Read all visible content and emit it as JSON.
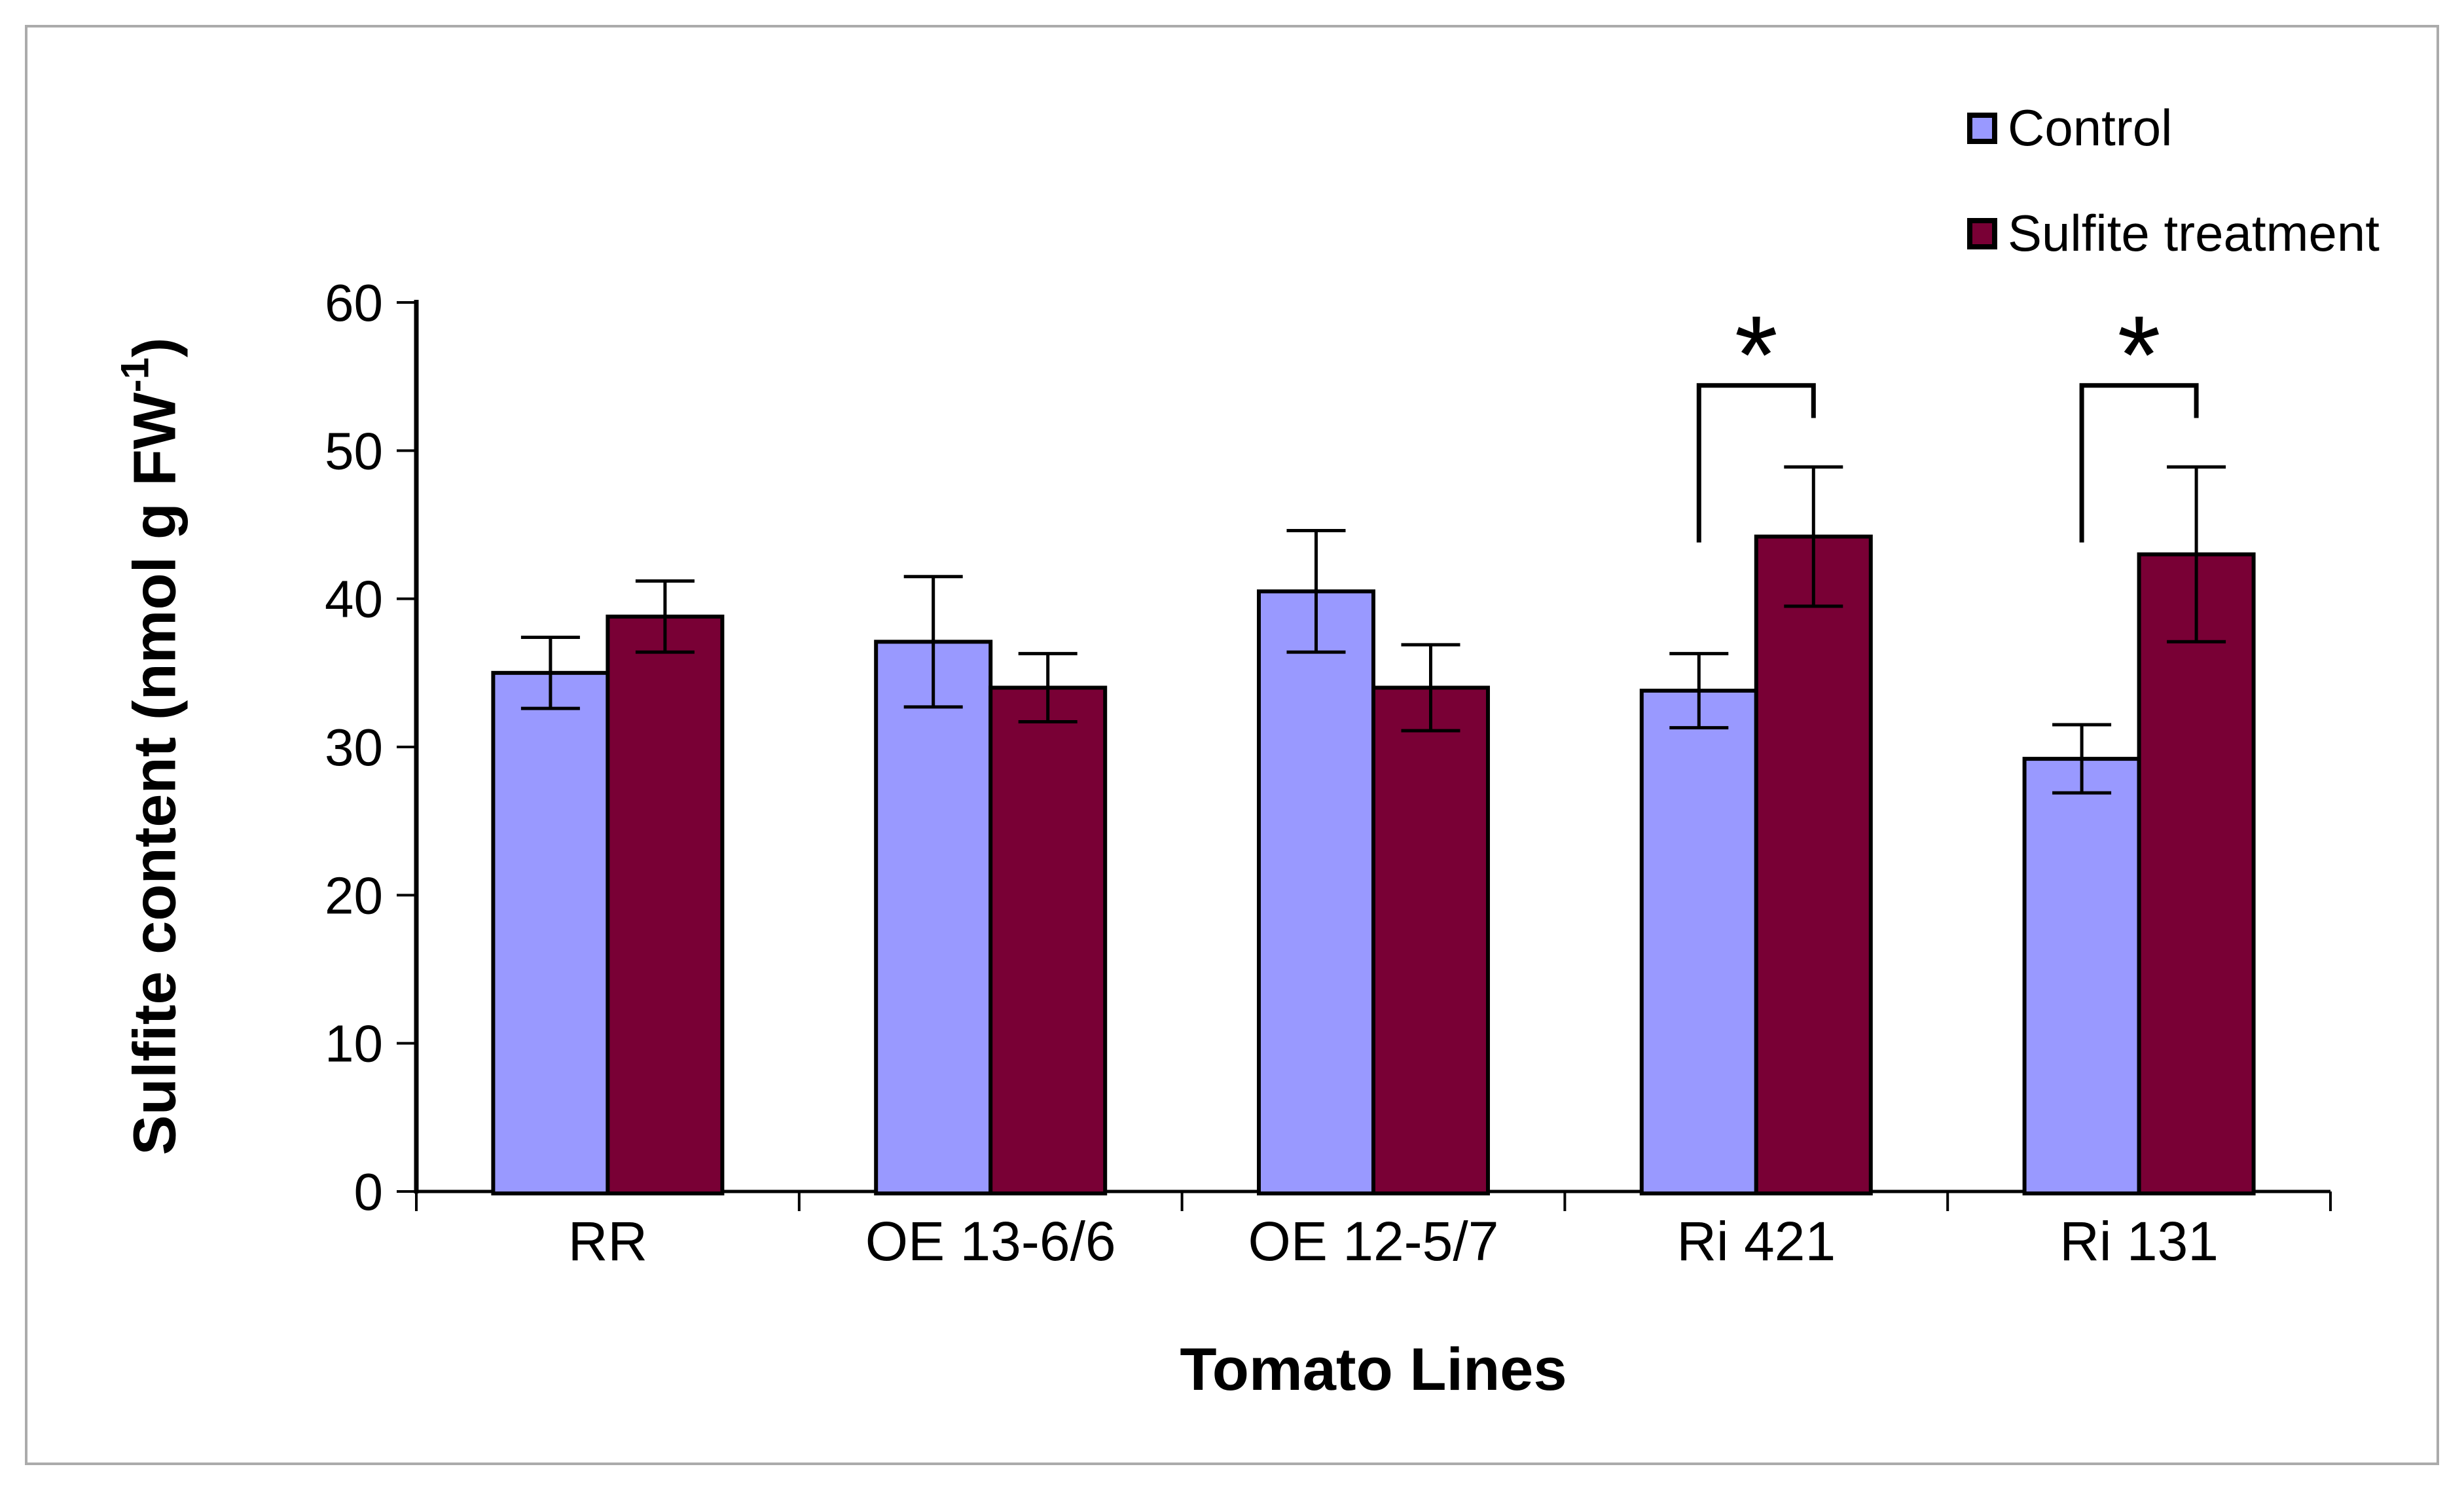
{
  "figure": {
    "background_color": "#ffffff",
    "border_color": "#ababab"
  },
  "legend": {
    "position": "top-right",
    "items": [
      {
        "label": "Control",
        "color": "#9999FF"
      },
      {
        "label": "Sulfite treatment",
        "color": "#790035"
      }
    ]
  },
  "titles": {
    "ylabel_full": "Sulfite content (nmol g FW-1)",
    "ylabel_base": "Sulfite content (nmol g FW",
    "ylabel_sup": "-1",
    "ylabel_close": ")",
    "xlabel": "Tomato Lines"
  },
  "chart_data": {
    "type": "bar",
    "title": "",
    "xlabel": "Tomato Lines",
    "ylabel": "Sulfite content (nmol g FW-1)",
    "categories": [
      "RR",
      "OE 13-6/6",
      "OE 12-5/7",
      "Ri 421",
      "Ri 131"
    ],
    "series": [
      {
        "name": "Control",
        "color": "#9999FF",
        "values": [
          35.0,
          37.1,
          40.5,
          33.8,
          29.2
        ],
        "errors": [
          2.4,
          4.4,
          4.1,
          2.5,
          2.3
        ]
      },
      {
        "name": "Sulfite treatment",
        "color": "#790035",
        "values": [
          38.8,
          34.0,
          34.0,
          44.2,
          43.0
        ],
        "errors": [
          2.4,
          2.3,
          2.9,
          4.7,
          5.9
        ]
      }
    ],
    "ylim": [
      0,
      60
    ],
    "yticks": [
      0,
      10,
      20,
      30,
      40,
      50,
      60
    ],
    "grid": false,
    "legend_position": "top-right",
    "bar_border_color": "#000000",
    "error_bar_color": "#000000",
    "axis_color": "#000000",
    "significance": [
      {
        "category": "Ri 421",
        "category_index": 3,
        "label": "*",
        "bar_top_value": 54.4,
        "left_drop_value": 43.8,
        "right_drop_value": 52.2
      },
      {
        "category": "Ri 131",
        "category_index": 4,
        "label": "*",
        "bar_top_value": 54.4,
        "left_drop_value": 43.8,
        "right_drop_value": 52.2
      }
    ]
  }
}
